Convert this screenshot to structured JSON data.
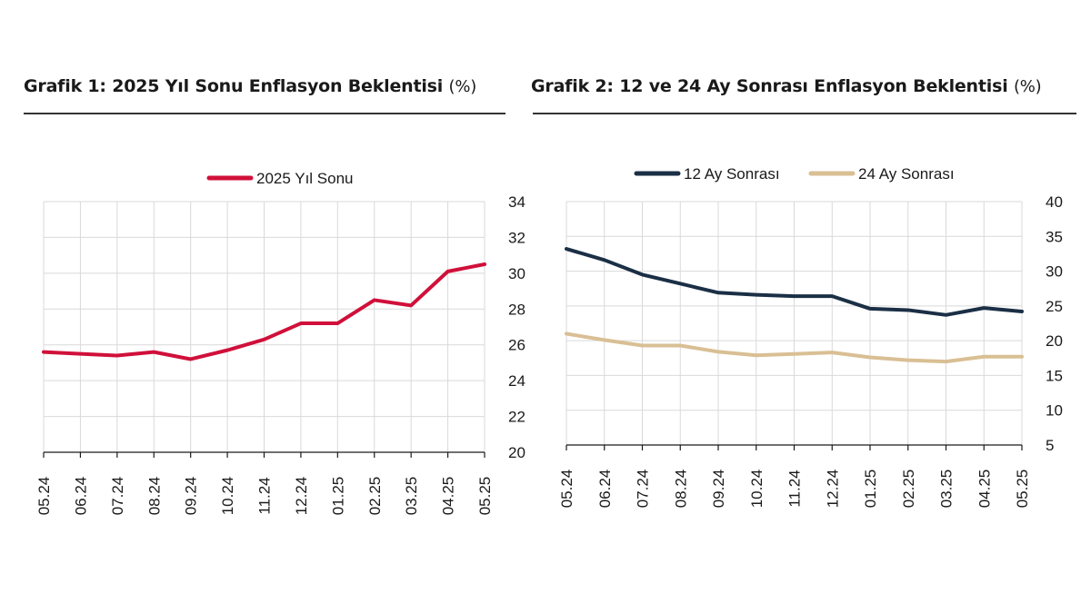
{
  "charts": [
    {
      "title": "Grafik 1: 2025 Yıl Sonu Enflasyon Beklentisi",
      "unit": "(%)",
      "chart_data": {
        "type": "line",
        "categories": [
          "05.24",
          "06.24",
          "07.24",
          "08.24",
          "09.24",
          "10.24",
          "11.24",
          "12.24",
          "01.25",
          "02.25",
          "03.25",
          "04.25",
          "05.25"
        ],
        "series": [
          {
            "name": "2025 Yıl Sonu",
            "color": "#d0103a",
            "values": [
              25.6,
              25.5,
              25.4,
              25.6,
              25.2,
              25.7,
              26.3,
              27.2,
              27.2,
              28.5,
              28.2,
              30.1,
              30.5
            ]
          }
        ],
        "y_ticks": [
          20,
          22,
          24,
          26,
          28,
          30,
          32,
          34
        ],
        "ylim": [
          20,
          34
        ],
        "y_axis_side": "right",
        "grid": true,
        "legend_position": "top-center"
      }
    },
    {
      "title": "Grafik 2: 12 ve 24 Ay Sonrası Enflasyon Beklentisi",
      "unit": "(%)",
      "chart_data": {
        "type": "line",
        "categories": [
          "05.24",
          "06.24",
          "07.24",
          "08.24",
          "09.24",
          "10.24",
          "11.24",
          "12.24",
          "01.25",
          "02.25",
          "03.25",
          "04.25",
          "05.25"
        ],
        "series": [
          {
            "name": "12 Ay Sonrası",
            "color": "#1b2f45",
            "values": [
              33.2,
              31.6,
              29.5,
              28.2,
              26.9,
              26.6,
              26.4,
              26.4,
              24.6,
              24.4,
              23.7,
              24.7,
              24.2
            ]
          },
          {
            "name": "24 Ay Sonrası",
            "color": "#d9bf94",
            "values": [
              21.0,
              20.1,
              19.3,
              19.3,
              18.4,
              17.9,
              18.1,
              18.3,
              17.6,
              17.2,
              17.0,
              17.7,
              17.7
            ]
          }
        ],
        "y_ticks": [
          5,
          10,
          15,
          20,
          25,
          30,
          35,
          40
        ],
        "ylim": [
          5,
          40
        ],
        "y_axis_side": "right",
        "grid": true,
        "legend_position": "top-center"
      }
    }
  ]
}
